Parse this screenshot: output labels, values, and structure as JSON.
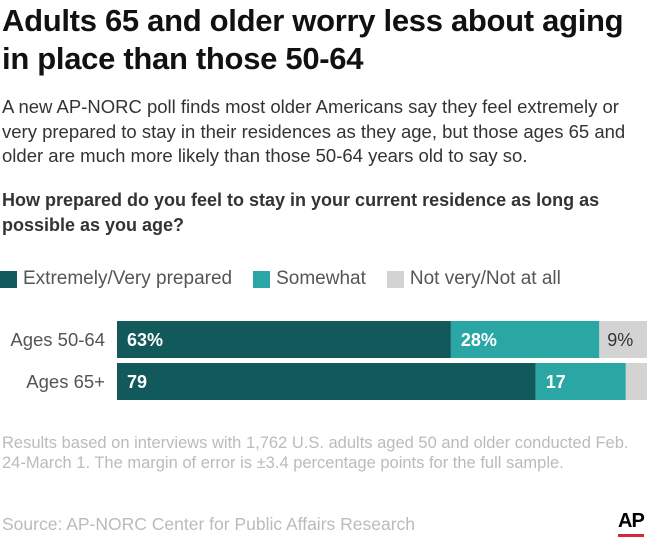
{
  "title": "Adults 65 and older worry less about aging in place than those 50-64",
  "subtitle": "A new AP-NORC poll finds most older Americans say they feel extremely or very prepared to stay in their residences as they age, but those ages 65 and older are much more likely than those 50-64 years old to say so.",
  "question": "How prepared do you feel to stay in your current residence as long as possible as you age?",
  "notes": "Results based on interviews with 1,762 U.S. adults aged 50 and older conducted Feb. 24-March 1. The margin of error is ±3.4 percentage points for the full sample.",
  "source": "Source: AP-NORC Center for Public Affairs Research",
  "logo": "AP",
  "chart_data": {
    "type": "bar",
    "orientation": "horizontal",
    "stacked": true,
    "categories": [
      "Ages 50-64",
      "Ages 65+"
    ],
    "series": [
      {
        "name": "Extremely/Very prepared",
        "values": [
          63,
          79
        ],
        "labels": [
          "63%",
          "79"
        ],
        "color": "#11595b"
      },
      {
        "name": "Somewhat",
        "values": [
          28,
          17
        ],
        "labels": [
          "28%",
          "17"
        ],
        "color": "#2aa7a5"
      },
      {
        "name": "Not very/Not at all",
        "values": [
          9,
          4
        ],
        "labels": [
          "9%",
          ""
        ],
        "color": "#d3d3d3"
      }
    ],
    "xlim": [
      0,
      100
    ],
    "legend": "top-left",
    "grid": false
  }
}
